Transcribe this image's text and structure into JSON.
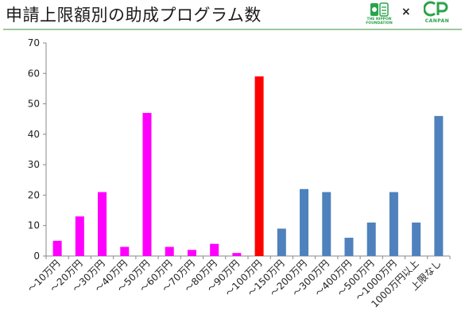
{
  "header": {
    "title": "申請上限額別の助成プログラム数",
    "nf_logo_text": "THE NIPPON\nFOUNDATION",
    "times": "×",
    "canpan_text": "CANPAN",
    "nf_icon": "nippon-foundation-logo-icon",
    "canpan_icon": "canpan-logo-icon"
  },
  "colors": {
    "magenta": "#ff00ff",
    "red": "#ff0000",
    "blue": "#4f81bd",
    "accent_green": "#2aa34a"
  },
  "chart_data": {
    "type": "bar",
    "categories": [
      "～10万円",
      "～20万円",
      "～30万円",
      "～40万円",
      "～50万円",
      "～60万円",
      "～70万円",
      "～80万円",
      "～90万円",
      "～100万円",
      "～150万円",
      "～200万円",
      "～300万円",
      "～400万円",
      "～500万円",
      "～1000万円",
      "1000万円以上",
      "上限なし"
    ],
    "values": [
      5,
      13,
      21,
      3,
      47,
      3,
      2,
      4,
      1,
      59,
      9,
      22,
      21,
      6,
      11,
      21,
      11,
      46
    ],
    "bar_colors": [
      "#ff00ff",
      "#ff00ff",
      "#ff00ff",
      "#ff00ff",
      "#ff00ff",
      "#ff00ff",
      "#ff00ff",
      "#ff00ff",
      "#ff00ff",
      "#ff0000",
      "#4f81bd",
      "#4f81bd",
      "#4f81bd",
      "#4f81bd",
      "#4f81bd",
      "#4f81bd",
      "#4f81bd",
      "#4f81bd"
    ],
    "yticks": [
      0,
      10,
      20,
      30,
      40,
      50,
      60,
      70
    ],
    "ylim": [
      0,
      70
    ],
    "grid": false,
    "legend": "none",
    "title": "",
    "xlabel": "",
    "ylabel": ""
  }
}
